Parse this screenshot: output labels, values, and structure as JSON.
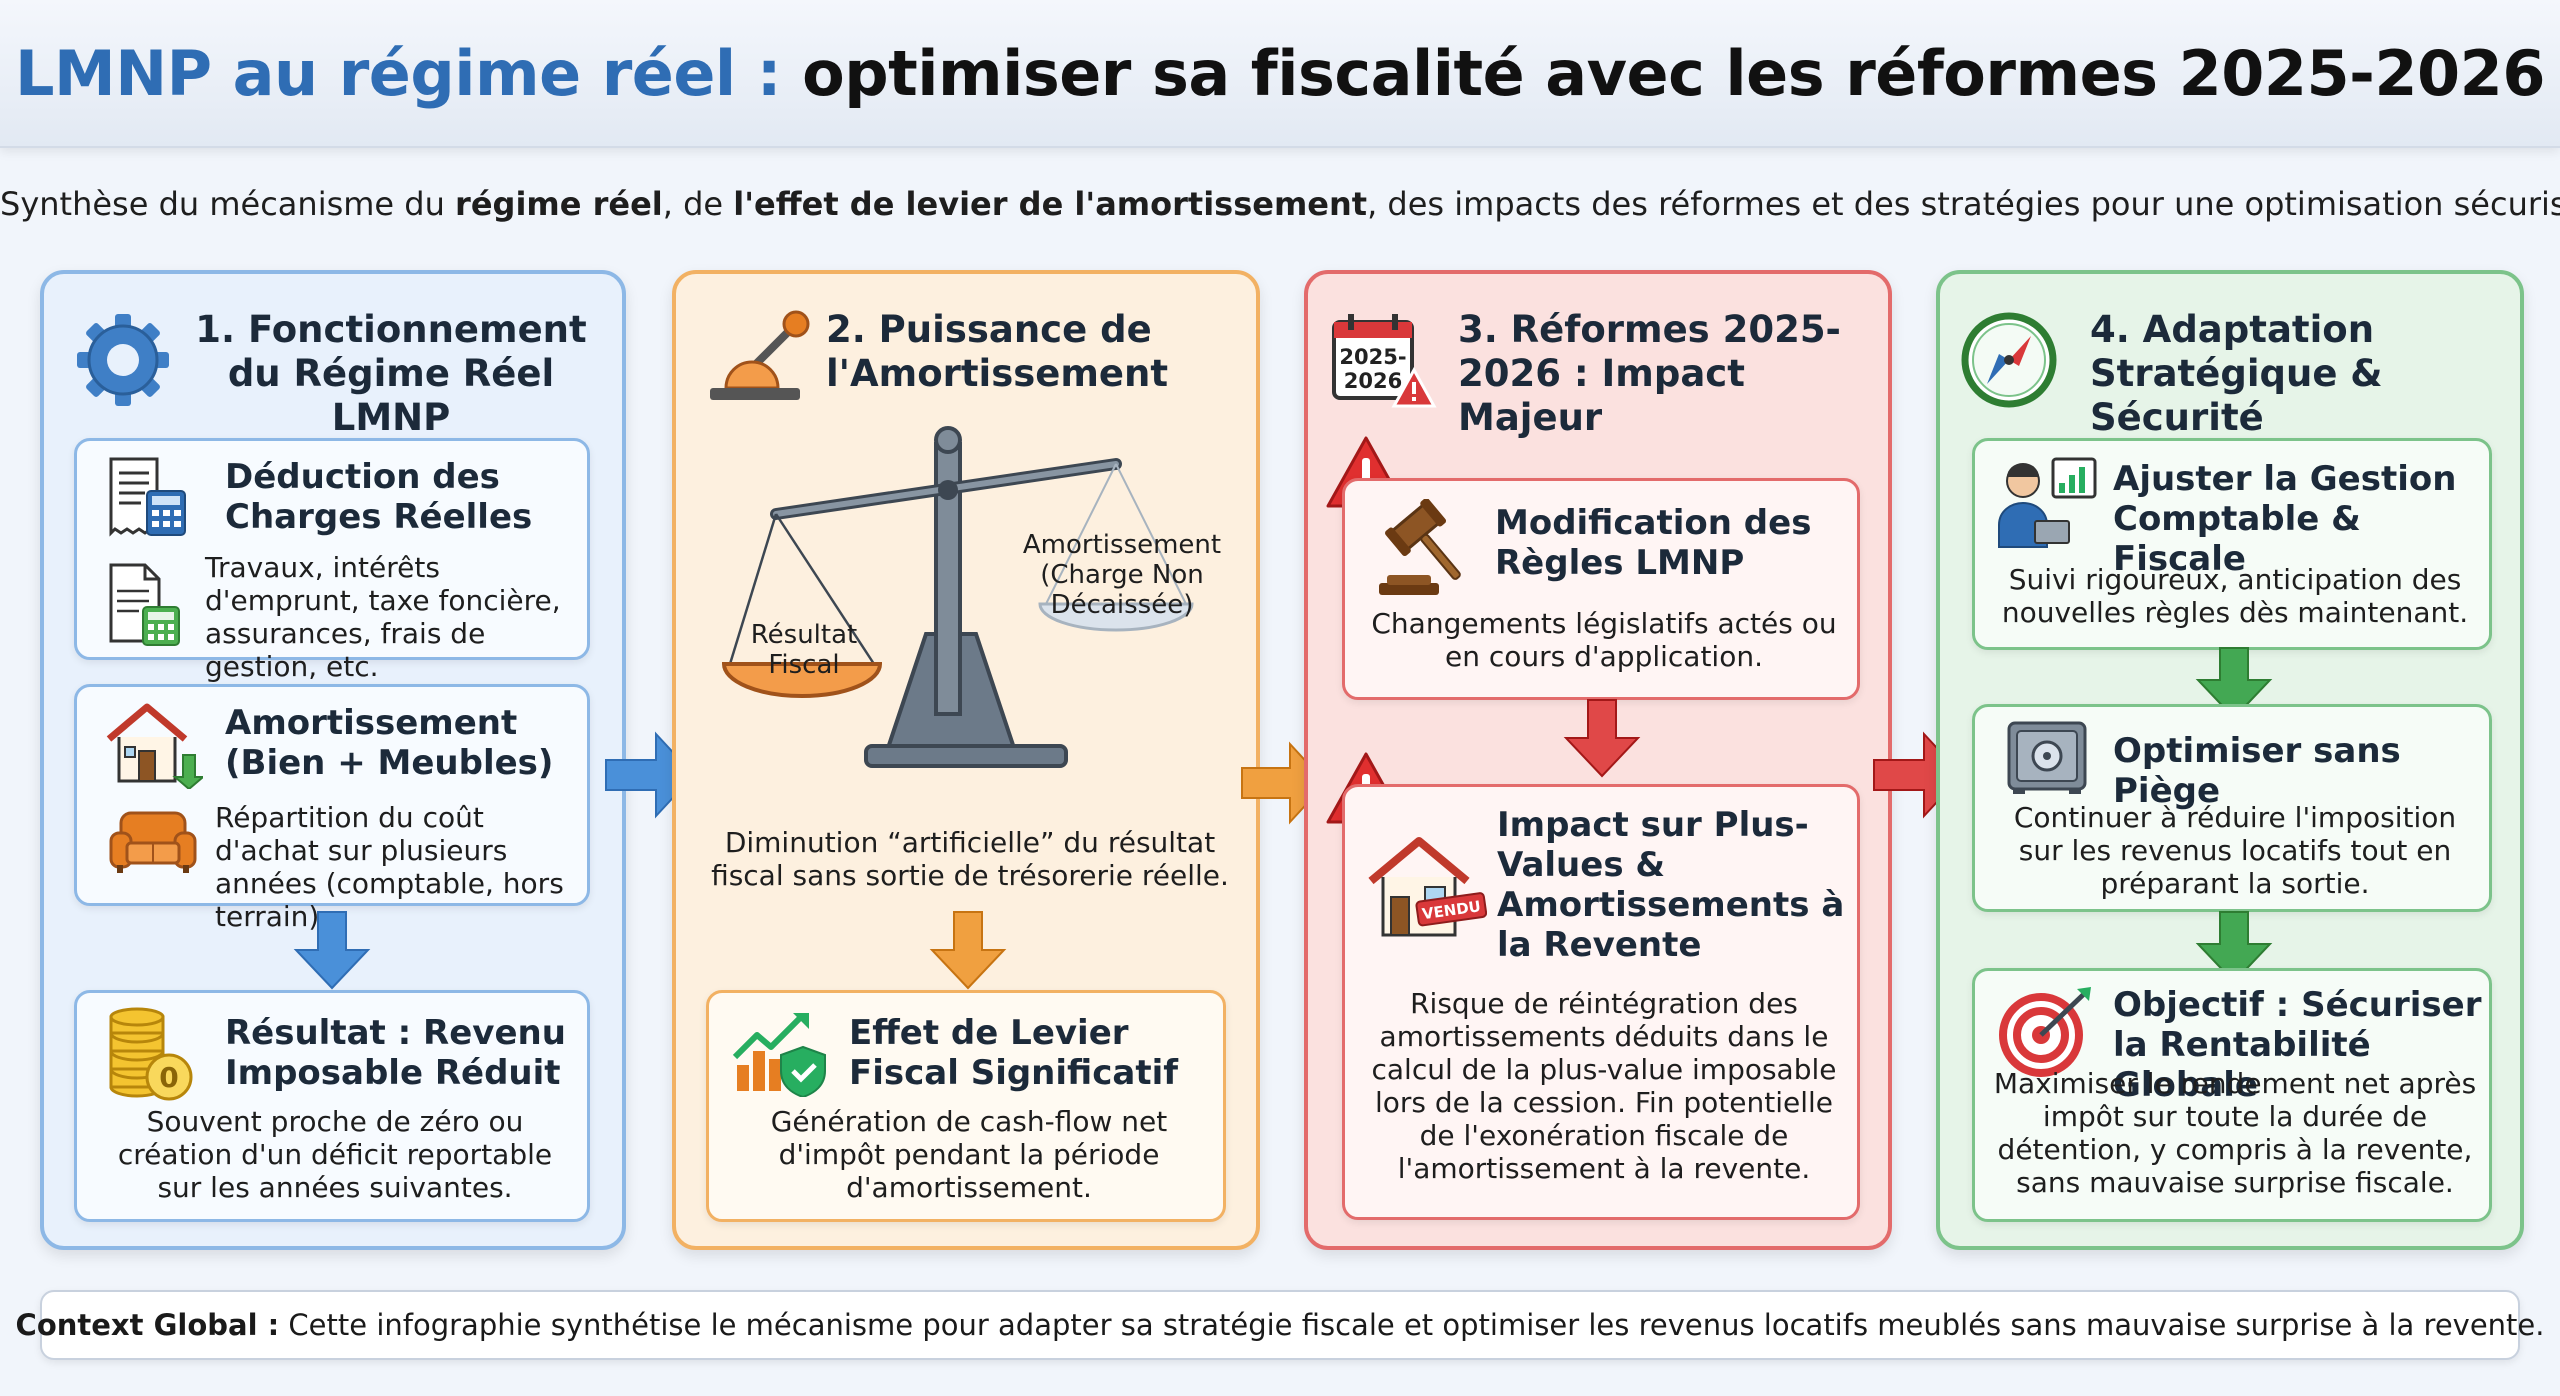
{
  "header": {
    "title_highlight": "LMNP au régime réel :",
    "title_rest": "optimiser sa fiscalité avec les réformes 2025-2026"
  },
  "subtitle": {
    "p1": "Synthèse du mécanisme du ",
    "b1": "régime réel",
    "p2": ", de ",
    "b2": "l'effet de levier de l'amortissement",
    "p3": ", des impacts des réformes et des stratégies pour une optimisation sécurisée."
  },
  "col1": {
    "title": "1. Fonctionnement du Régime Réel LMNP",
    "box1_title": "Déduction des Charges Réelles",
    "box1_text": "Travaux, intérêts d'emprunt, taxe foncière, assurances, frais de gestion, etc.",
    "box2_title": "Amortissement (Bien + Meubles)",
    "box2_text": "Répartition du coût d'achat sur plusieurs années (comptable, hors terrain).",
    "box3_title": "Résultat : Revenu Imposable Réduit",
    "box3_text": "Souvent proche de zéro ou création d'un déficit reportable sur les années suivantes."
  },
  "col2": {
    "title": "2. Puissance de l'Amortissement",
    "scale_left": "Résultat Fiscal",
    "scale_right": "Amortissement (Charge Non Décaissée)",
    "desc": "Diminution “artificielle” du résultat fiscal sans sortie de trésorerie réelle.",
    "box_title": "Effet de Levier Fiscal Significatif",
    "box_text": "Génération de cash-flow net d'impôt pendant la période d'amortissement."
  },
  "col3": {
    "title": "3. Réformes 2025-2026 : Impact Majeur",
    "calendar_label": "2025-2026",
    "box1_title": "Modification des Règles LMNP",
    "box1_text": "Changements législatifs actés ou en cours d'application.",
    "box2_title": "Impact sur Plus-Values & Amortissements à la Revente",
    "sold_label": "VENDU",
    "box2_text": "Risque de réintégration des amortissements déduits dans le calcul de la plus-value imposable lors de la cession. Fin potentielle de l'exonération fiscale de l'amortissement à la revente."
  },
  "col4": {
    "title": "4. Adaptation Stratégique & Sécurité",
    "box1_title": "Ajuster la Gestion Comptable & Fiscale",
    "box1_text": "Suivi rigoureux, anticipation des nouvelles règles dès maintenant.",
    "box2_title": "Optimiser sans Piège",
    "box2_text": "Continuer à réduire l'imposition sur les revenus locatifs tout en préparant la sortie.",
    "box3_title": "Objectif : Sécuriser la Rentabilité Globale",
    "box3_text": "Maximiser le rendement net après impôt sur toute la durée de détention, y compris à la revente, sans mauvaise surprise fiscale."
  },
  "footer": {
    "label": "Context Global :",
    "text": " Cette infographie synthétise le mécanisme pour adapter sa stratégie fiscale et optimiser les revenus locatifs meublés sans mauvaise surprise à la revente."
  },
  "colors": {
    "blue": "#8db8e6",
    "orange": "#f2b163",
    "red": "#e36b6b",
    "green": "#7cc38a",
    "title_blue": "#2f6db4"
  }
}
